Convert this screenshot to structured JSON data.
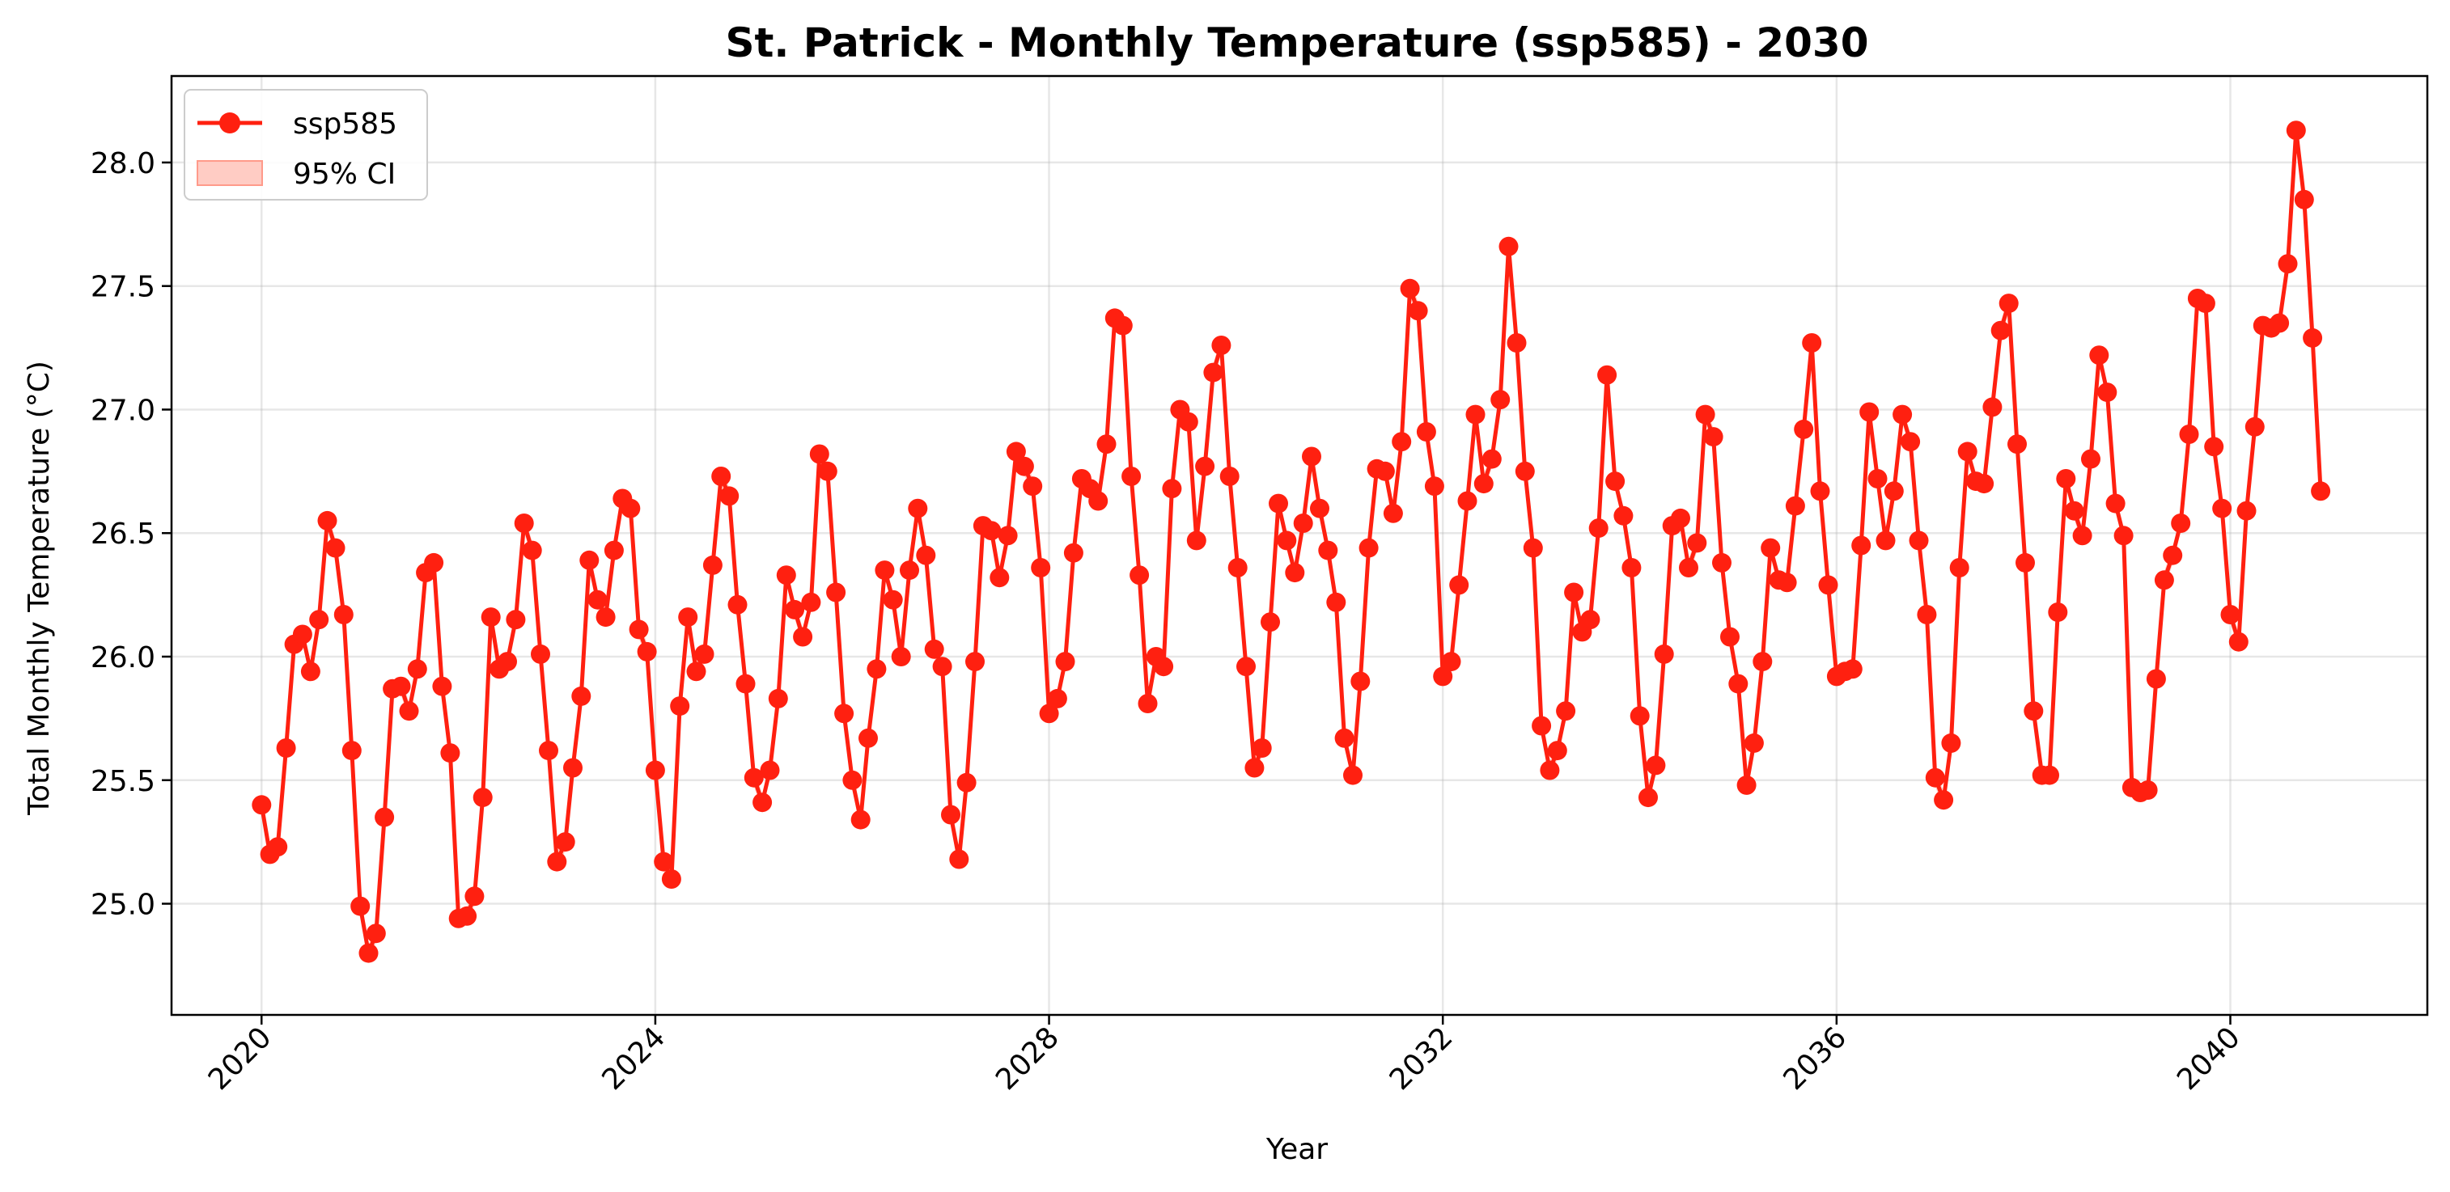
{
  "chart_data": {
    "type": "line",
    "title": "St. Patrick - Monthly Temperature (ssp585) - 2030",
    "xlabel": "Year",
    "ylabel": "Total Monthly Temperature (°C)",
    "xlim": [
      "2019-02-01",
      "2042-01-01"
    ],
    "ylim": [
      24.55,
      28.35
    ],
    "x_ticks": [
      "2020",
      "2024",
      "2028",
      "2032",
      "2036",
      "2040"
    ],
    "y_ticks": [
      "25.0",
      "25.5",
      "26.0",
      "26.5",
      "27.0",
      "27.5",
      "28.0"
    ],
    "grid": true,
    "legend": {
      "placement": "top-left",
      "line_label": "ssp585",
      "band_label": "95% CI"
    },
    "colors": {
      "line": "#ff2010",
      "band": "#ff9a8a"
    },
    "series": [
      {
        "name": "ssp585",
        "start": "2020-01",
        "frequency": "monthly",
        "values": [
          25.4,
          25.2,
          25.23,
          25.63,
          26.05,
          26.09,
          25.94,
          26.15,
          26.55,
          26.44,
          26.17,
          25.62,
          24.99,
          24.8,
          24.88,
          25.35,
          25.87,
          25.88,
          25.78,
          25.95,
          26.34,
          26.38,
          25.88,
          25.61,
          24.94,
          24.95,
          25.03,
          25.43,
          26.16,
          25.95,
          25.98,
          26.15,
          26.54,
          26.43,
          26.01,
          25.62,
          25.17,
          25.25,
          25.55,
          25.84,
          26.39,
          26.23,
          26.16,
          26.43,
          26.64,
          26.6,
          26.11,
          26.02,
          25.54,
          25.17,
          25.1,
          25.8,
          26.16,
          25.94,
          26.01,
          26.37,
          26.73,
          26.65,
          26.21,
          25.89,
          25.51,
          25.41,
          25.54,
          25.83,
          26.33,
          26.19,
          26.08,
          26.22,
          26.82,
          26.75,
          26.26,
          25.77,
          25.5,
          25.34,
          25.67,
          25.95,
          26.35,
          26.23,
          26.0,
          26.35,
          26.6,
          26.41,
          26.03,
          25.96,
          25.36,
          25.18,
          25.49,
          25.98,
          26.53,
          26.51,
          26.32,
          26.49,
          26.83,
          26.77,
          26.69,
          26.36,
          25.77,
          25.83,
          25.98,
          26.42,
          26.72,
          26.68,
          26.63,
          26.86,
          27.37,
          27.34,
          26.73,
          26.33,
          25.81,
          26.0,
          25.96,
          26.68,
          27.0,
          26.95,
          26.47,
          26.77,
          27.15,
          27.26,
          26.73,
          26.36,
          25.96,
          25.55,
          25.63,
          26.14,
          26.62,
          26.47,
          26.34,
          26.54,
          26.81,
          26.6,
          26.43,
          26.22,
          25.67,
          25.52,
          25.9,
          26.44,
          26.76,
          26.75,
          26.58,
          26.87,
          27.49,
          27.4,
          26.91,
          26.69,
          25.92,
          25.98,
          26.29,
          26.63,
          26.98,
          26.7,
          26.8,
          27.04,
          27.66,
          27.27,
          26.75,
          26.44,
          25.72,
          25.54,
          25.62,
          25.78,
          26.26,
          26.1,
          26.15,
          26.52,
          27.14,
          26.71,
          26.57,
          26.36,
          25.76,
          25.43,
          25.56,
          26.01,
          26.53,
          26.56,
          26.36,
          26.46,
          26.98,
          26.89,
          26.38,
          26.08,
          25.89,
          25.48,
          25.65,
          25.98,
          26.44,
          26.31,
          26.3,
          26.61,
          26.92,
          27.27,
          26.67,
          26.29,
          25.92,
          25.94,
          25.95,
          26.45,
          26.99,
          26.72,
          26.47,
          26.67,
          26.98,
          26.87,
          26.47,
          26.17,
          25.51,
          25.42,
          25.65,
          26.36,
          26.83,
          26.71,
          26.7,
          27.01,
          27.32,
          27.43,
          26.86,
          26.38,
          25.78,
          25.52,
          25.52,
          26.18,
          26.72,
          26.59,
          26.49,
          26.8,
          27.22,
          27.07,
          26.62,
          26.49,
          25.47,
          25.45,
          25.46,
          25.91,
          26.31,
          26.41,
          26.54,
          26.9,
          27.45,
          27.43,
          26.85,
          26.6,
          26.17,
          26.06,
          26.59,
          26.93,
          27.34,
          27.33,
          27.35,
          27.59,
          28.13,
          27.85,
          27.29,
          26.67
        ]
      }
    ]
  }
}
